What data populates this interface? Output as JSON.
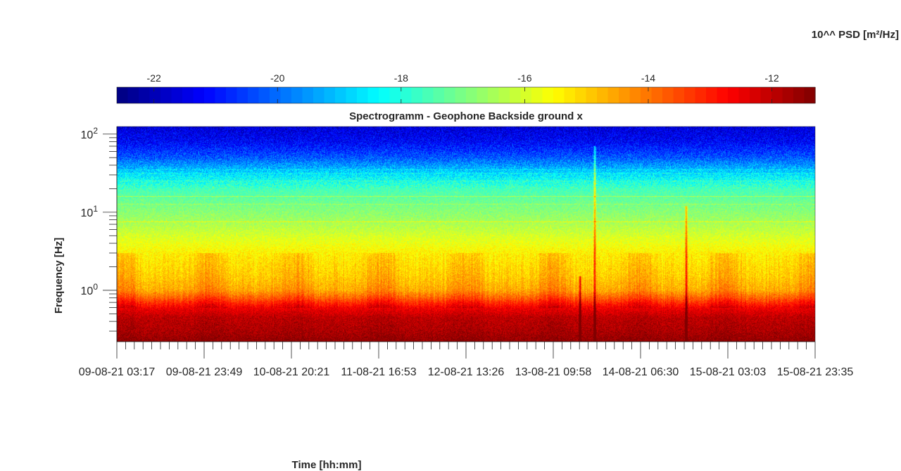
{
  "chart_data": {
    "type": "heatmap",
    "title": "Spectrogramm - Geophone Backside ground x",
    "xlabel": "Time [hh:mm]",
    "ylabel": "Frequency [Hz]",
    "colorbar_label": "10^^ PSD [m²/Hz]",
    "colormap": "jet",
    "color_range": [
      -22.6,
      -11.3
    ],
    "colorbar_ticks": [
      -22,
      -20,
      -18,
      -16,
      -14,
      -12
    ],
    "y_scale": "log",
    "ylim": [
      0.22,
      125
    ],
    "y_ticks": [
      {
        "value": 1,
        "label": "10",
        "exp": "0"
      },
      {
        "value": 10,
        "label": "10",
        "exp": "1"
      },
      {
        "value": 100,
        "label": "10",
        "exp": "2"
      }
    ],
    "x_tick_labels": [
      "09-08-21 03:17",
      "09-08-21 23:49",
      "10-08-21 20:21",
      "11-08-21 16:53",
      "12-08-21 13:26",
      "13-08-21 09:58",
      "14-08-21 06:30",
      "15-08-21 03:03",
      "15-08-21 23:35"
    ],
    "grid": false,
    "spectrum_profile": [
      {
        "freq_hz": 0.22,
        "log_psd": -11.5
      },
      {
        "freq_hz": 0.3,
        "log_psd": -11.8
      },
      {
        "freq_hz": 0.45,
        "log_psd": -12.0
      },
      {
        "freq_hz": 0.6,
        "log_psd": -12.6
      },
      {
        "freq_hz": 0.8,
        "log_psd": -13.8
      },
      {
        "freq_hz": 1.0,
        "log_psd": -14.6
      },
      {
        "freq_hz": 1.5,
        "log_psd": -15.0
      },
      {
        "freq_hz": 3,
        "log_psd": -15.4
      },
      {
        "freq_hz": 5,
        "log_psd": -16.0
      },
      {
        "freq_hz": 8,
        "log_psd": -16.6
      },
      {
        "freq_hz": 12,
        "log_psd": -17.0
      },
      {
        "freq_hz": 20,
        "log_psd": -17.6
      },
      {
        "freq_hz": 30,
        "log_psd": -18.6
      },
      {
        "freq_hz": 50,
        "log_psd": -20.2
      },
      {
        "freq_hz": 80,
        "log_psd": -21.2
      },
      {
        "freq_hz": 125,
        "log_psd": -21.6
      }
    ],
    "horizontal_lines_hz": [
      7.5,
      16,
      25,
      35
    ],
    "events": [
      {
        "time_fraction": 0.663,
        "peak_hz": 1.5
      },
      {
        "time_fraction": 0.684,
        "peak_hz": 70
      },
      {
        "time_fraction": 0.815,
        "peak_hz": 12
      }
    ]
  }
}
